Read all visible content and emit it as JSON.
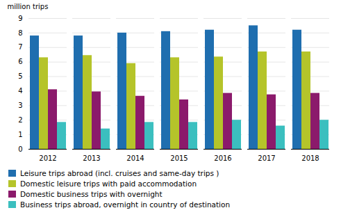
{
  "chart_data": {
    "type": "bar",
    "ylabel": "million trips",
    "categories": [
      "2012",
      "2013",
      "2014",
      "2015",
      "2016",
      "2017",
      "2018"
    ],
    "series": [
      {
        "name": "Leisure trips abroad (incl. cruises and same-day trips )",
        "color": "#1f6eaf",
        "values": [
          7.8,
          7.8,
          8.0,
          8.1,
          8.2,
          8.5,
          8.2
        ]
      },
      {
        "name": "Domestic leisure trips with paid accommodation",
        "color": "#b5c42a",
        "values": [
          6.3,
          6.45,
          5.9,
          6.3,
          6.35,
          6.7,
          6.7
        ]
      },
      {
        "name": "Domestic business trips with overnight",
        "color": "#8b1a6b",
        "values": [
          4.1,
          3.95,
          3.65,
          3.4,
          3.85,
          3.75,
          3.85
        ]
      },
      {
        "name": "Business trips abroad, overnight in country of destination",
        "color": "#3bbfbf",
        "values": [
          1.85,
          1.4,
          1.85,
          1.85,
          2.0,
          1.6,
          2.0
        ]
      }
    ],
    "ylim": [
      0,
      9
    ],
    "yticks": [
      0,
      1,
      2,
      3,
      4,
      5,
      6,
      7,
      8,
      9
    ],
    "grid": true,
    "legend": "bottom"
  }
}
